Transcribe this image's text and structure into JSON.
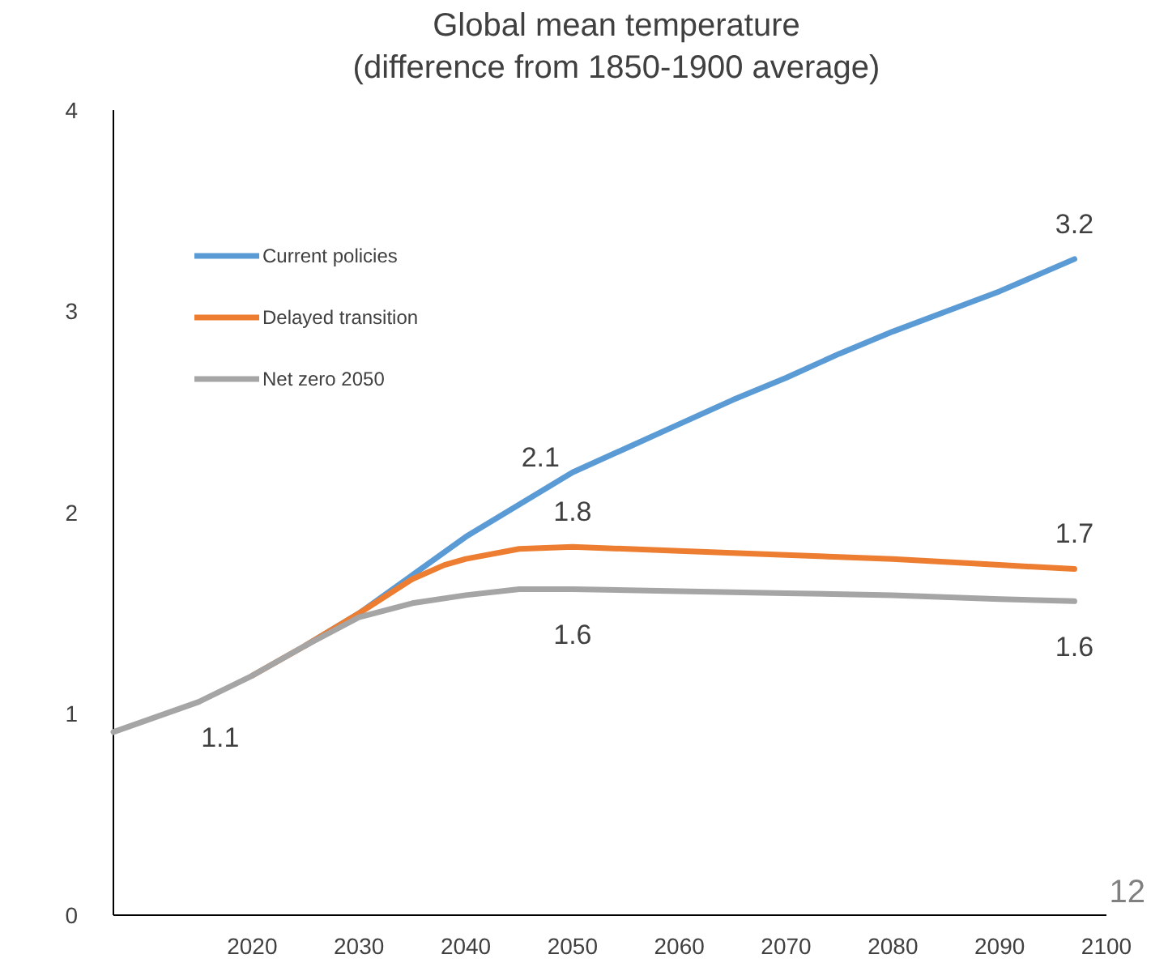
{
  "chart_data": {
    "type": "line",
    "title": "Global mean temperature\n(difference from 1850-1900 average)",
    "xlim": [
      2007,
      2100
    ],
    "xticks": [
      2020,
      2030,
      2040,
      2050,
      2060,
      2070,
      2080,
      2090,
      2100
    ],
    "ylim": [
      0,
      4
    ],
    "yticks": [
      0,
      1,
      2,
      3,
      4
    ],
    "grid": false,
    "legend": "top left",
    "marker": "none",
    "line_style": "solid",
    "series": [
      {
        "name": "Current policies",
        "color": "#5b9bd5",
        "x": [
          2025,
          2030,
          2035,
          2040,
          2045,
          2050,
          2055,
          2060,
          2065,
          2070,
          2075,
          2080,
          2085,
          2090,
          2097
        ],
        "values": [
          1.34,
          1.5,
          1.69,
          1.88,
          2.04,
          2.2,
          2.32,
          2.44,
          2.56,
          2.67,
          2.79,
          2.9,
          3.0,
          3.1,
          3.26
        ]
      },
      {
        "name": "Delayed transition",
        "color": "#ed7d31",
        "x": [
          2020,
          2025,
          2030,
          2035,
          2038,
          2040,
          2045,
          2050,
          2060,
          2070,
          2080,
          2090,
          2097
        ],
        "values": [
          1.19,
          1.34,
          1.5,
          1.67,
          1.74,
          1.77,
          1.82,
          1.83,
          1.81,
          1.79,
          1.77,
          1.74,
          1.72
        ]
      },
      {
        "name": "Net zero 2050",
        "color": "#a5a5a5",
        "x": [
          2007,
          2015,
          2020,
          2025,
          2030,
          2035,
          2040,
          2045,
          2050,
          2060,
          2070,
          2080,
          2090,
          2097
        ],
        "values": [
          0.91,
          1.06,
          1.19,
          1.34,
          1.48,
          1.55,
          1.59,
          1.62,
          1.62,
          1.61,
          1.6,
          1.59,
          1.57,
          1.56
        ]
      }
    ],
    "annotations": [
      {
        "text": "1.1",
        "x": 2017,
        "y": 1.11
      },
      {
        "text": "2.1",
        "x": 2047,
        "y": 2.1
      },
      {
        "text": "1.8",
        "x": 2050,
        "y": 1.83
      },
      {
        "text": "1.6",
        "x": 2050,
        "y": 1.62
      },
      {
        "text": "3.2",
        "x": 2097,
        "y": 3.26
      },
      {
        "text": "1.7",
        "x": 2097,
        "y": 1.72
      },
      {
        "text": "1.6",
        "x": 2097,
        "y": 1.56
      },
      "12"
    ]
  }
}
